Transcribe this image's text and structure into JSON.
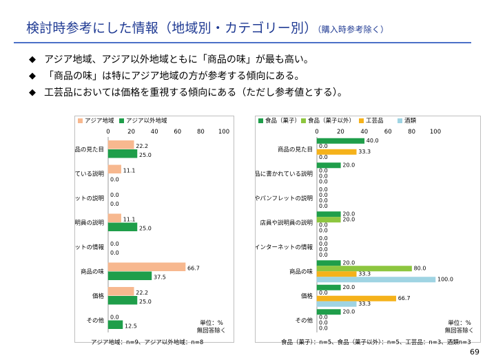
{
  "slide": {
    "title": "検討時参考にした情報（地域別・カテゴリー別）",
    "title_note": "（購入時参考除く）",
    "bullets": [
      "アジア地域、アジア以外地域ともに「商品の味」が最も高い。",
      "「商品の味」は特にアジア地域の方が参考する傾向にある。",
      "工芸品においては価格を重視する傾向にある（ただし参考値とする）。"
    ],
    "bullet_icon": "diamond-bullet-icon",
    "page_number": "69",
    "colors": {
      "title": "#1f3a93",
      "rule": "#4a6fc7"
    }
  },
  "chart_data": [
    {
      "type": "bar",
      "orientation": "horizontal",
      "categories": [
        "商品の見た目",
        "商品に書かれている説明",
        "POPやパンフレットの説明",
        "店員や説明員の説明",
        "インターネットの情報",
        "商品の味",
        "価格",
        "その他"
      ],
      "series": [
        {
          "name": "アジア地域",
          "color": "#f7b88f",
          "values": [
            22.2,
            11.1,
            0.0,
            11.1,
            0.0,
            66.7,
            22.2,
            0.0
          ]
        },
        {
          "name": "アジア以外地域",
          "color": "#1f9e4a",
          "values": [
            25.0,
            0.0,
            0.0,
            25.0,
            0.0,
            37.5,
            25.0,
            12.5
          ]
        }
      ],
      "xlim": [
        0,
        100
      ],
      "xticks": [
        0,
        20,
        40,
        60,
        80,
        100
      ],
      "grid": false,
      "legend": "top",
      "unit_note": [
        "単位：%",
        "無回答除く"
      ],
      "footnote": "アジア地域：n=9、アジア以外地域：n=8"
    },
    {
      "type": "bar",
      "orientation": "horizontal",
      "categories": [
        "商品の見た目",
        "商品に書かれている説明",
        "POPやパンフレットの説明",
        "店員や説明員の説明",
        "インターネットの情報",
        "商品の味",
        "価格",
        "その他"
      ],
      "series": [
        {
          "name": "食品（菓子）",
          "color": "#1f9e4a",
          "values": [
            40.0,
            20.0,
            0.0,
            20.0,
            0.0,
            20.0,
            20.0,
            20.0
          ]
        },
        {
          "name": "食品（菓子以外）",
          "color": "#8dc63f",
          "values": [
            0.0,
            0.0,
            0.0,
            20.0,
            0.0,
            80.0,
            0.0,
            0.0
          ]
        },
        {
          "name": "工芸品",
          "color": "#f5b21b",
          "values": [
            33.3,
            0.0,
            0.0,
            0.0,
            0.0,
            33.3,
            66.7,
            0.0
          ]
        },
        {
          "name": "酒類",
          "color": "#9fd4e3",
          "values": [
            0.0,
            0.0,
            0.0,
            0.0,
            0.0,
            100.0,
            33.3,
            0.0
          ]
        }
      ],
      "xlim": [
        0,
        100
      ],
      "xticks": [
        0,
        20,
        40,
        60,
        80,
        100
      ],
      "grid": false,
      "legend": "top",
      "unit_note": [
        "単位：%",
        "無回答除く"
      ],
      "footnote": "食品（菓子）：n=5、食品（菓子以外）：n=5、工芸品：n=3、酒類n=3"
    }
  ]
}
